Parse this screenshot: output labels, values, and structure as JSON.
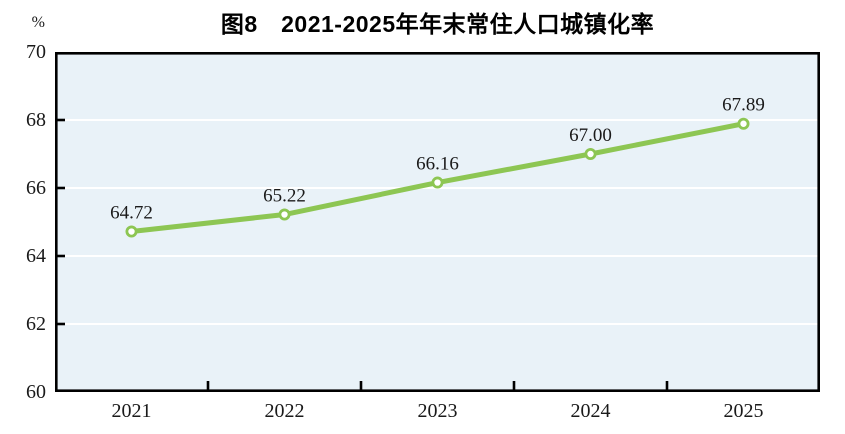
{
  "chart_data": {
    "type": "line",
    "title": "图8　2021-2025年年末常住人口城镇化率",
    "unit": "%",
    "categories": [
      "2021",
      "2022",
      "2023",
      "2024",
      "2025"
    ],
    "series": [
      {
        "name": "年末常住人口城镇化率",
        "values": [
          64.72,
          65.22,
          66.16,
          67.0,
          67.89
        ],
        "labels": [
          "64.72",
          "65.22",
          "66.16",
          "67.00",
          "67.89"
        ]
      }
    ],
    "xlabel": "",
    "ylabel": "%",
    "ylim": [
      60,
      70
    ],
    "yticks": [
      60,
      62,
      64,
      66,
      68,
      70
    ],
    "grid": "horizontal",
    "legend": "none",
    "colors": {
      "line": "#8dc653",
      "marker_fill": "#ffffff",
      "marker_stroke": "#8dc653",
      "plot_background": "#e9f2f8",
      "grid_line": "#ffffff",
      "axis": "#000000",
      "text": "#1a1a1a",
      "title": "#000000"
    }
  }
}
